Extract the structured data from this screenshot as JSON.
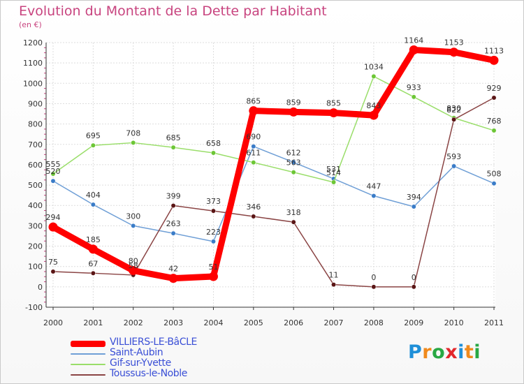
{
  "brand": {
    "text": "Proxiti",
    "colors": [
      "#1f8fd8",
      "#f08a1d",
      "#29a844",
      "#e2272c",
      "#1f8fd8",
      "#f08a1d",
      "#29a844"
    ]
  },
  "chart_data": {
    "type": "line",
    "title": "Evolution du Montant de la Dette par Habitant",
    "subtitle": "(en €)",
    "xlabel": "",
    "ylabel": "",
    "x": [
      "2000",
      "2001",
      "2002",
      "2003",
      "2004",
      "2005",
      "2006",
      "2007",
      "2008",
      "2009",
      "2010",
      "2011"
    ],
    "ylim": [
      -100,
      1200
    ],
    "yticks": [
      "-100",
      "0",
      "100",
      "200",
      "300",
      "400",
      "500",
      "600",
      "700",
      "800",
      "900",
      "1000",
      "1100",
      "1200"
    ],
    "grid": true,
    "legend": "bottom-left",
    "series": [
      {
        "name": "Saint-Aubin",
        "color": "#6f9fd6",
        "marker": "#3a7cc8",
        "values": [
          520,
          404,
          300,
          263,
          223,
          690,
          612,
          531,
          447,
          394,
          593,
          508
        ],
        "labels": [
          "520",
          "404",
          "300",
          "263",
          "223",
          "690",
          "612",
          "531",
          "447",
          "394",
          "593",
          "508"
        ]
      },
      {
        "name": "Gif-sur-Yvette",
        "color": "#9ade6a",
        "marker": "#6cc635",
        "values": [
          555,
          695,
          708,
          685,
          658,
          611,
          563,
          514,
          1034,
          933,
          830,
          768
        ],
        "labels": [
          "555",
          "695",
          "708",
          "685",
          "658",
          "611",
          "563",
          "514",
          "1034",
          "933",
          "830",
          "768"
        ]
      },
      {
        "name": "Toussus-le-Noble",
        "color": "#8a4444",
        "marker": "#5a1515",
        "values": [
          75,
          67,
          58,
          399,
          373,
          346,
          318,
          11,
          0,
          0,
          822,
          929
        ],
        "labels": [
          "75",
          "67",
          "58",
          "399",
          "373",
          "346",
          "318",
          "11",
          "0",
          "0",
          "822",
          "929"
        ]
      },
      {
        "name": "VILLIERS-LE-BâCLE",
        "color": "#ff0000",
        "marker": "#ff0000",
        "values": [
          294,
          185,
          80,
          42,
          51,
          865,
          859,
          855,
          843,
          1164,
          1153,
          1113
        ],
        "labels": [
          "294",
          "185",
          "80",
          "42",
          "51",
          "865",
          "859",
          "855",
          "843",
          "1164",
          "1153",
          "1113"
        ]
      }
    ],
    "legend_order": [
      3,
      0,
      1,
      2
    ]
  }
}
